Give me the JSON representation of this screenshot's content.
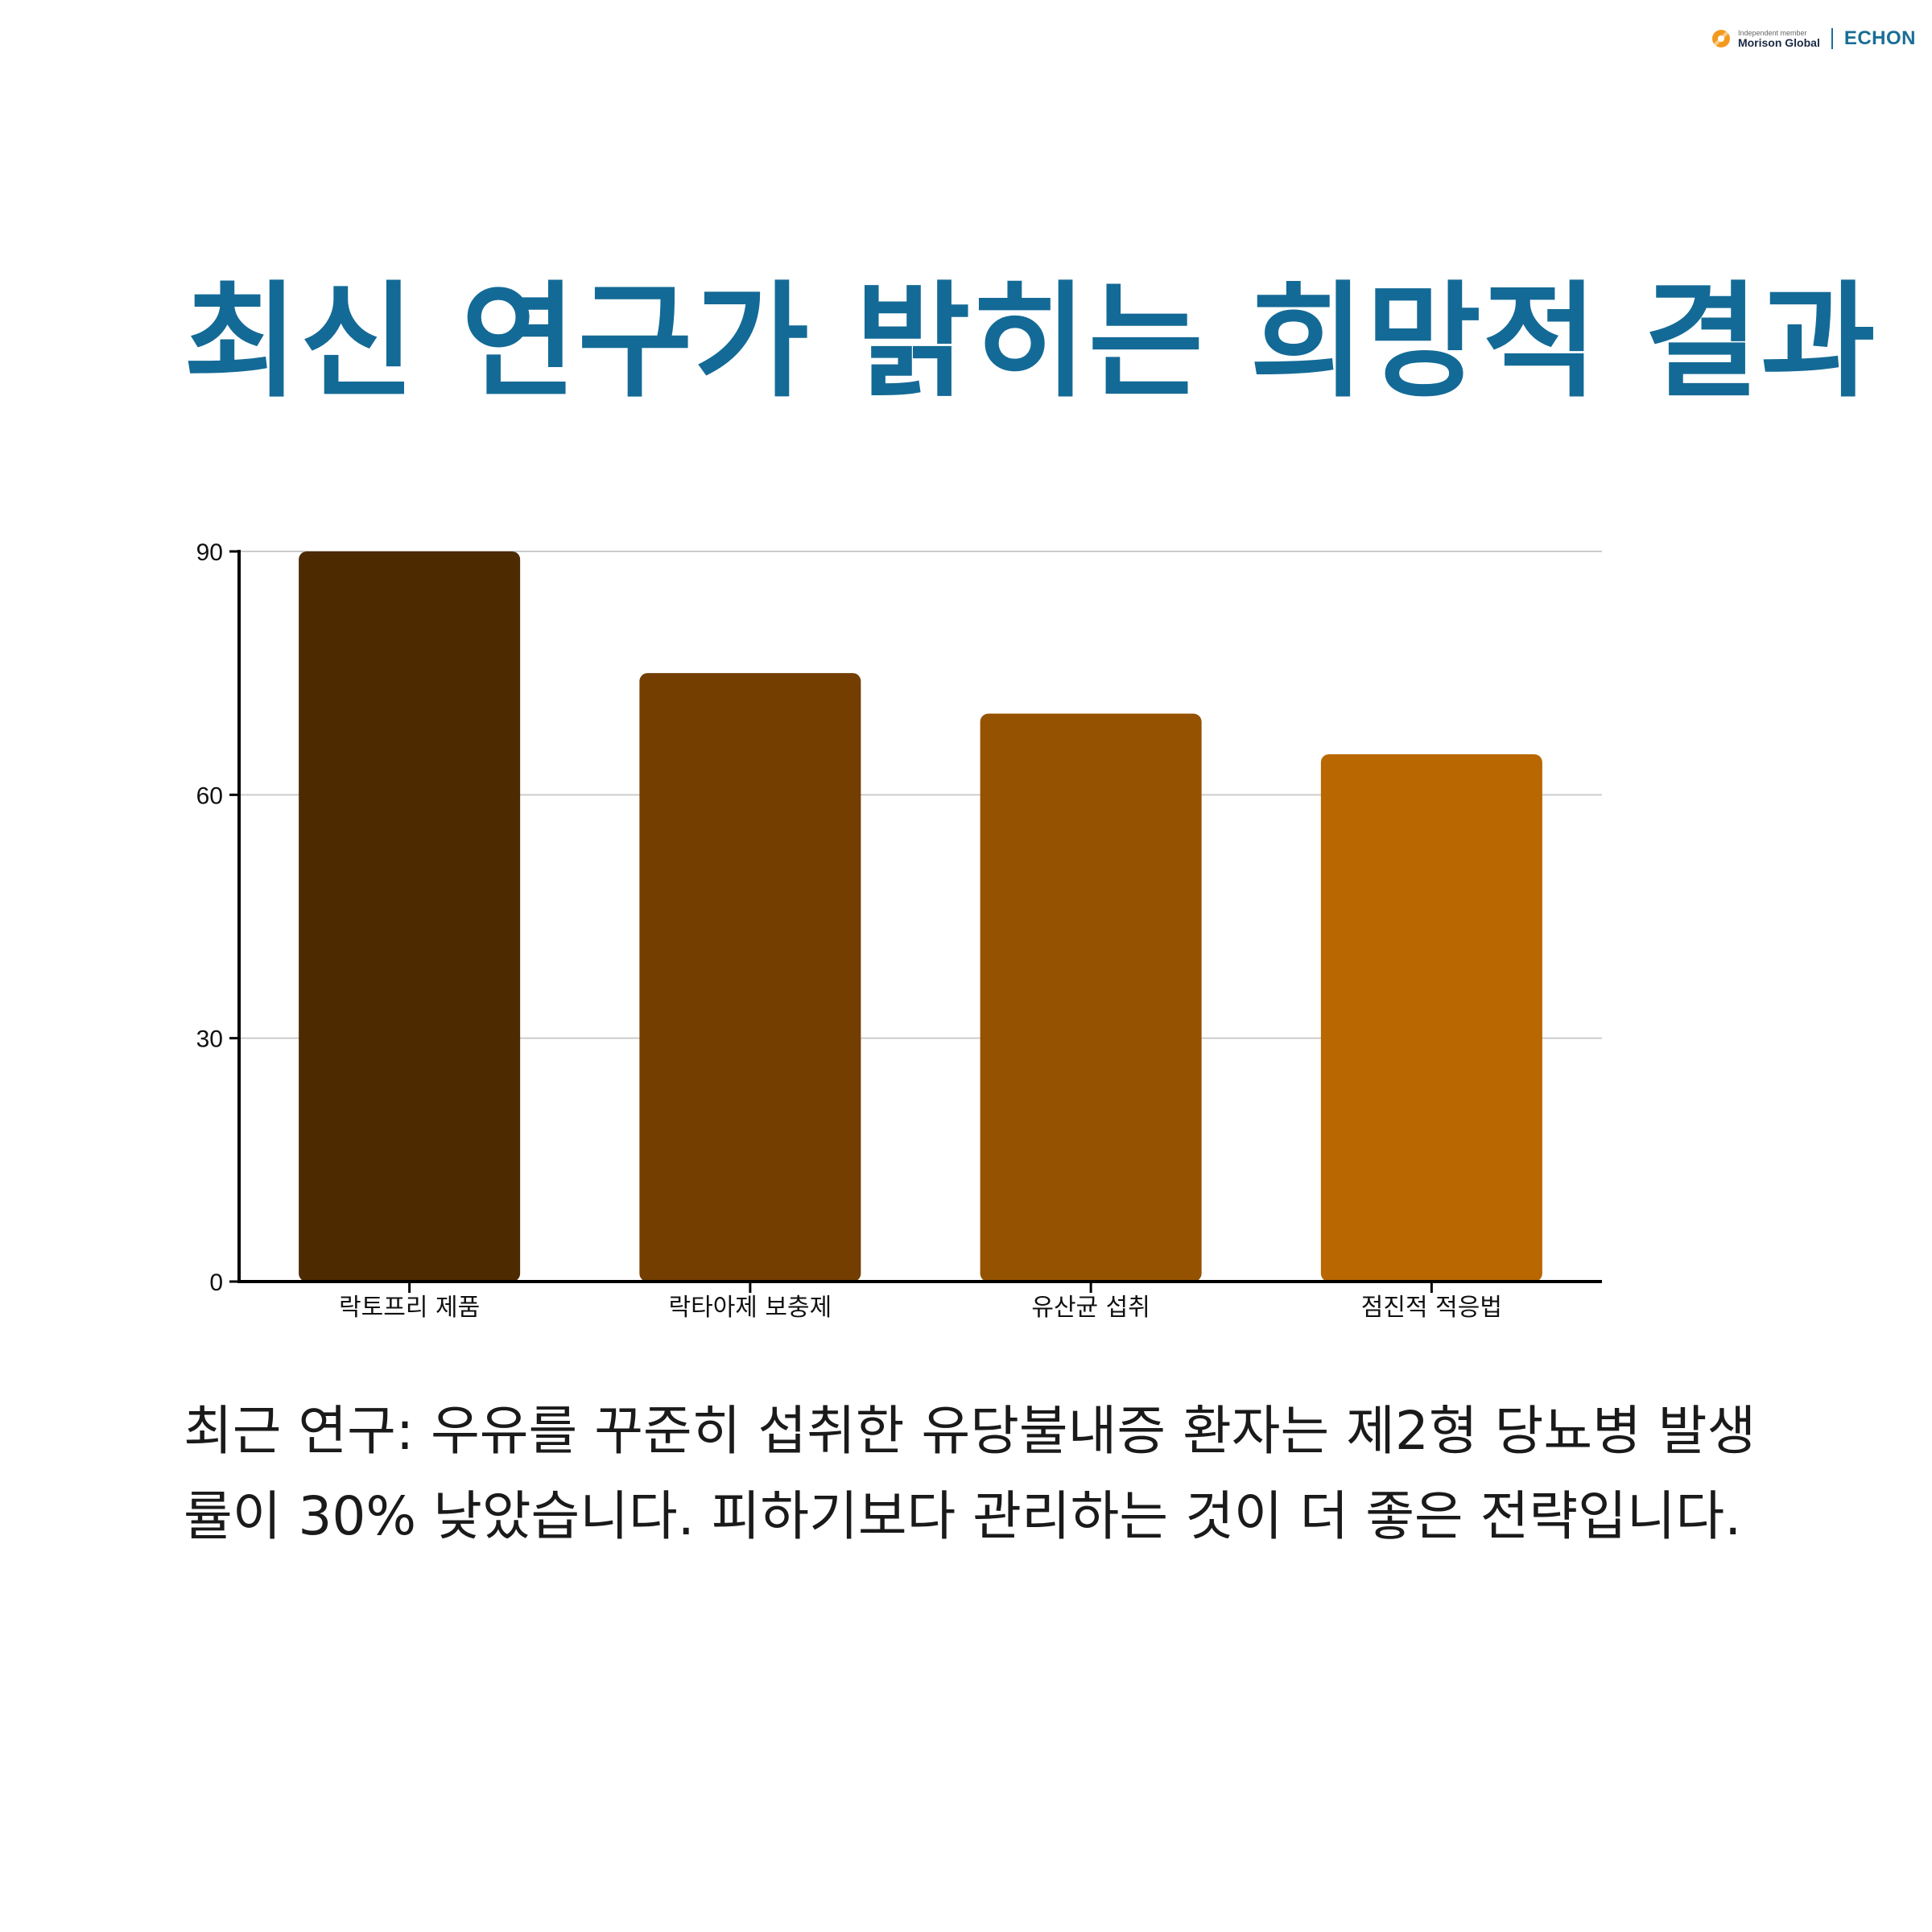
{
  "logo": {
    "small_text": "Independent member",
    "network": "Morison Global",
    "brand": "ECHON"
  },
  "title": "최신 연구가 밝히는 희망적 결과",
  "colors": {
    "title": "#146a96",
    "bars": [
      "#4d2a00",
      "#733e00",
      "#955200",
      "#b96700"
    ]
  },
  "chart_data": {
    "type": "bar",
    "categories": [
      "락토프리 제품",
      "락타아제 보충제",
      "유산균 섭취",
      "점진적 적응법"
    ],
    "values": [
      90,
      75,
      70,
      65
    ],
    "ylim": [
      0,
      90
    ],
    "yticks": [
      0,
      30,
      60,
      90
    ],
    "grid": true
  },
  "body_text": "최근 연구: 우유를 꾸준히 섭취한 유당불내증 환자는 제2형 당뇨병 발생률이 30% 낮았습니다. 피하기보다 관리하는 것이 더 좋은 전략입니다."
}
